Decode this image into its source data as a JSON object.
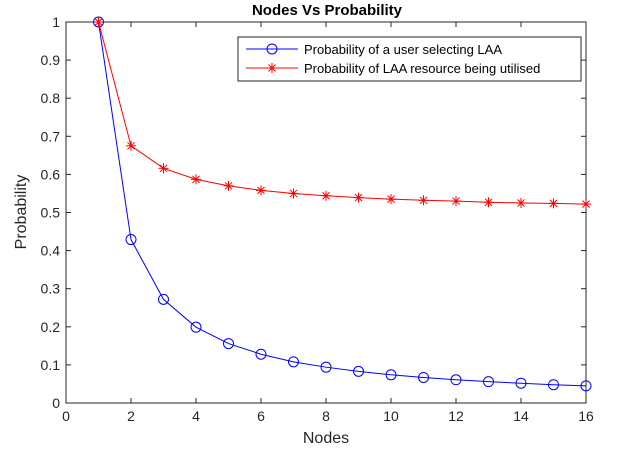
{
  "chart_data": {
    "type": "line",
    "title": "Nodes Vs Probability",
    "xlabel": "Nodes",
    "ylabel": "Probability",
    "xlim": [
      0,
      16
    ],
    "ylim": [
      0,
      1
    ],
    "xticks": [
      0,
      2,
      4,
      6,
      8,
      10,
      12,
      14,
      16
    ],
    "yticks": [
      0,
      0.1,
      0.2,
      0.3,
      0.4,
      0.5,
      0.6,
      0.7,
      0.8,
      0.9,
      1
    ],
    "xtick_labels": [
      "0",
      "2",
      "4",
      "6",
      "8",
      "10",
      "12",
      "14",
      "16"
    ],
    "ytick_labels": [
      "0",
      "0.1",
      "0.2",
      "0.3",
      "0.4",
      "0.5",
      "0.6",
      "0.7",
      "0.8",
      "0.9",
      "1"
    ],
    "grid": false,
    "legend_position": "top-right",
    "x": [
      1,
      2,
      3,
      4,
      5,
      6,
      7,
      8,
      9,
      10,
      11,
      12,
      13,
      14,
      15,
      16
    ],
    "series": [
      {
        "name": "Probability of a user selecting LAA",
        "color": "#0000ff",
        "marker": "circle",
        "values": [
          1.0,
          0.429,
          0.272,
          0.199,
          0.156,
          0.128,
          0.108,
          0.094,
          0.083,
          0.074,
          0.067,
          0.061,
          0.056,
          0.052,
          0.048,
          0.045
        ]
      },
      {
        "name": "Probability of LAA resource being utilised",
        "color": "#ff0000",
        "marker": "asterisk",
        "values": [
          1.0,
          0.675,
          0.616,
          0.587,
          0.57,
          0.558,
          0.55,
          0.544,
          0.539,
          0.535,
          0.532,
          0.53,
          0.527,
          0.525,
          0.524,
          0.522
        ]
      }
    ]
  }
}
